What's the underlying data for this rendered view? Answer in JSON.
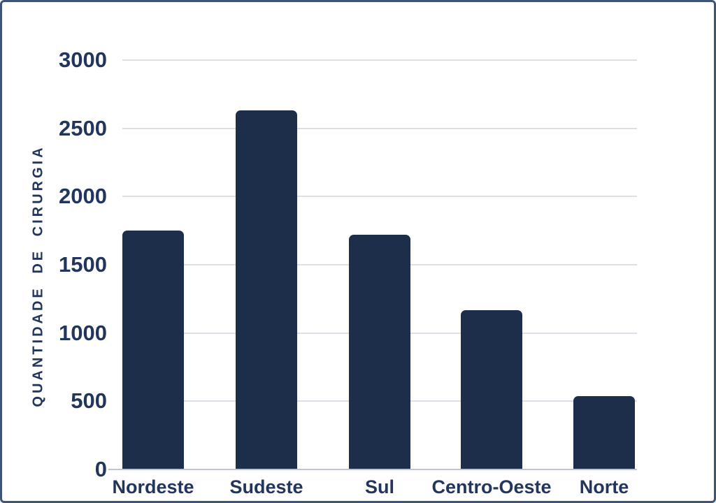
{
  "chart_data": {
    "type": "bar",
    "categories": [
      "Nordeste",
      "Sudeste",
      "Sul",
      "Centro-Oeste",
      "Norte"
    ],
    "values": [
      1750,
      2630,
      1720,
      1165,
      540
    ],
    "ylabel": "QUANTIDADE DE CIRURGIA",
    "xlabel": "",
    "ylim": [
      0,
      3000
    ],
    "yticks": [
      0,
      500,
      1000,
      1500,
      2000,
      2500,
      3000
    ],
    "grid": true,
    "legend_position": "none",
    "bar_color": "#1d2e4a",
    "axis_text_color": "#22355c",
    "gridline_color": "#dbe0e6",
    "baseline_color": "#bfc5cd",
    "border_color": "#3c5578",
    "background_color": "#ffffff"
  }
}
